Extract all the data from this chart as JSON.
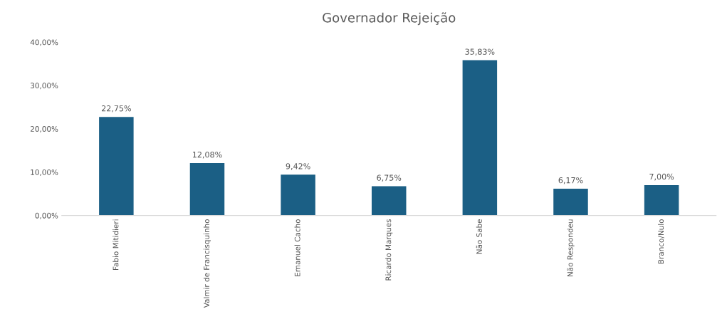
{
  "chart_data": {
    "type": "bar",
    "title": "Governador Rejeição",
    "categories": [
      "Fabio Mitidieri",
      "Valmir de Francisquinho",
      "Emanuel Cacho",
      "Ricardo Marques",
      "Não Sabe",
      "Não Respondeu",
      "Branco/Nulo"
    ],
    "values": [
      22.75,
      12.08,
      9.42,
      6.75,
      35.83,
      6.17,
      7.0
    ],
    "value_labels": [
      "22,75%",
      "12,08%",
      "9,42%",
      "6,75%",
      "35,83%",
      "6,17%",
      "7,00%"
    ],
    "color": "#1b5f85",
    "ylim": [
      0,
      40
    ],
    "yticks": [
      {
        "value": 0,
        "label": "0,00%"
      },
      {
        "value": 10,
        "label": "10,00%"
      },
      {
        "value": 20,
        "label": "20,00%"
      },
      {
        "value": 30,
        "label": "30,00%"
      },
      {
        "value": 40,
        "label": "40,00%"
      }
    ],
    "grid": false
  }
}
